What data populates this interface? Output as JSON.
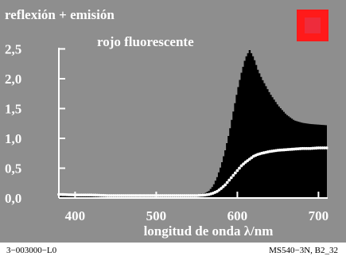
{
  "chart_data": {
    "type": "area",
    "title": "reflexión + emisión",
    "subtitle": "rojo fluorescente",
    "xlabel": "longitud de onda λ/nm",
    "ylabel": "",
    "xlim": [
      380,
      720
    ],
    "ylim": [
      0,
      2.6
    ],
    "x_ticks": [
      {
        "value": 400,
        "label": "400"
      },
      {
        "value": 500,
        "label": "500"
      },
      {
        "value": 600,
        "label": "600"
      },
      {
        "value": 700,
        "label": "700"
      }
    ],
    "y_ticks": [
      {
        "value": 0.0,
        "label": "0,0"
      },
      {
        "value": 0.5,
        "label": "0,5"
      },
      {
        "value": 1.0,
        "label": "1,0"
      },
      {
        "value": 1.5,
        "label": "1,5"
      },
      {
        "value": 2.0,
        "label": "2,0"
      },
      {
        "value": 2.5,
        "label": "2,5"
      }
    ],
    "series": [
      {
        "key": "total",
        "x": [
          380,
          400,
          420,
          440,
          460,
          480,
          500,
          520,
          540,
          550,
          560,
          565,
          570,
          575,
          580,
          585,
          590,
          595,
          600,
          605,
          610,
          615,
          620,
          625,
          630,
          640,
          650,
          660,
          670,
          680,
          690,
          700,
          710
        ],
        "y": [
          0.07,
          0.06,
          0.06,
          0.06,
          0.05,
          0.05,
          0.05,
          0.05,
          0.05,
          0.06,
          0.08,
          0.12,
          0.2,
          0.35,
          0.55,
          0.8,
          1.1,
          1.45,
          1.8,
          2.1,
          2.35,
          2.48,
          2.35,
          2.15,
          2.0,
          1.75,
          1.55,
          1.4,
          1.3,
          1.26,
          1.24,
          1.23,
          1.22
        ]
      },
      {
        "key": "reflection",
        "x": [
          380,
          400,
          420,
          440,
          460,
          480,
          500,
          520,
          540,
          550,
          560,
          565,
          570,
          575,
          580,
          585,
          590,
          595,
          600,
          605,
          610,
          615,
          620,
          625,
          630,
          640,
          650,
          660,
          670,
          680,
          690,
          700,
          710
        ],
        "y": [
          0.06,
          0.05,
          0.05,
          0.04,
          0.04,
          0.04,
          0.04,
          0.04,
          0.04,
          0.04,
          0.05,
          0.06,
          0.08,
          0.11,
          0.16,
          0.22,
          0.3,
          0.38,
          0.46,
          0.54,
          0.6,
          0.65,
          0.7,
          0.73,
          0.75,
          0.78,
          0.8,
          0.81,
          0.82,
          0.83,
          0.83,
          0.84,
          0.84
        ]
      }
    ],
    "colors": {
      "panel_background": "#8e8e8e",
      "sample_swatch_outer": "#ff1a1a",
      "sample_swatch_inner": "#ee2c3c",
      "reflection_line": "#ffffff",
      "axes": "#ffffff",
      "text": "#ffffff"
    }
  },
  "footer": {
    "left": "3−003000−L0",
    "right": "MS540−3N, B2_32"
  }
}
